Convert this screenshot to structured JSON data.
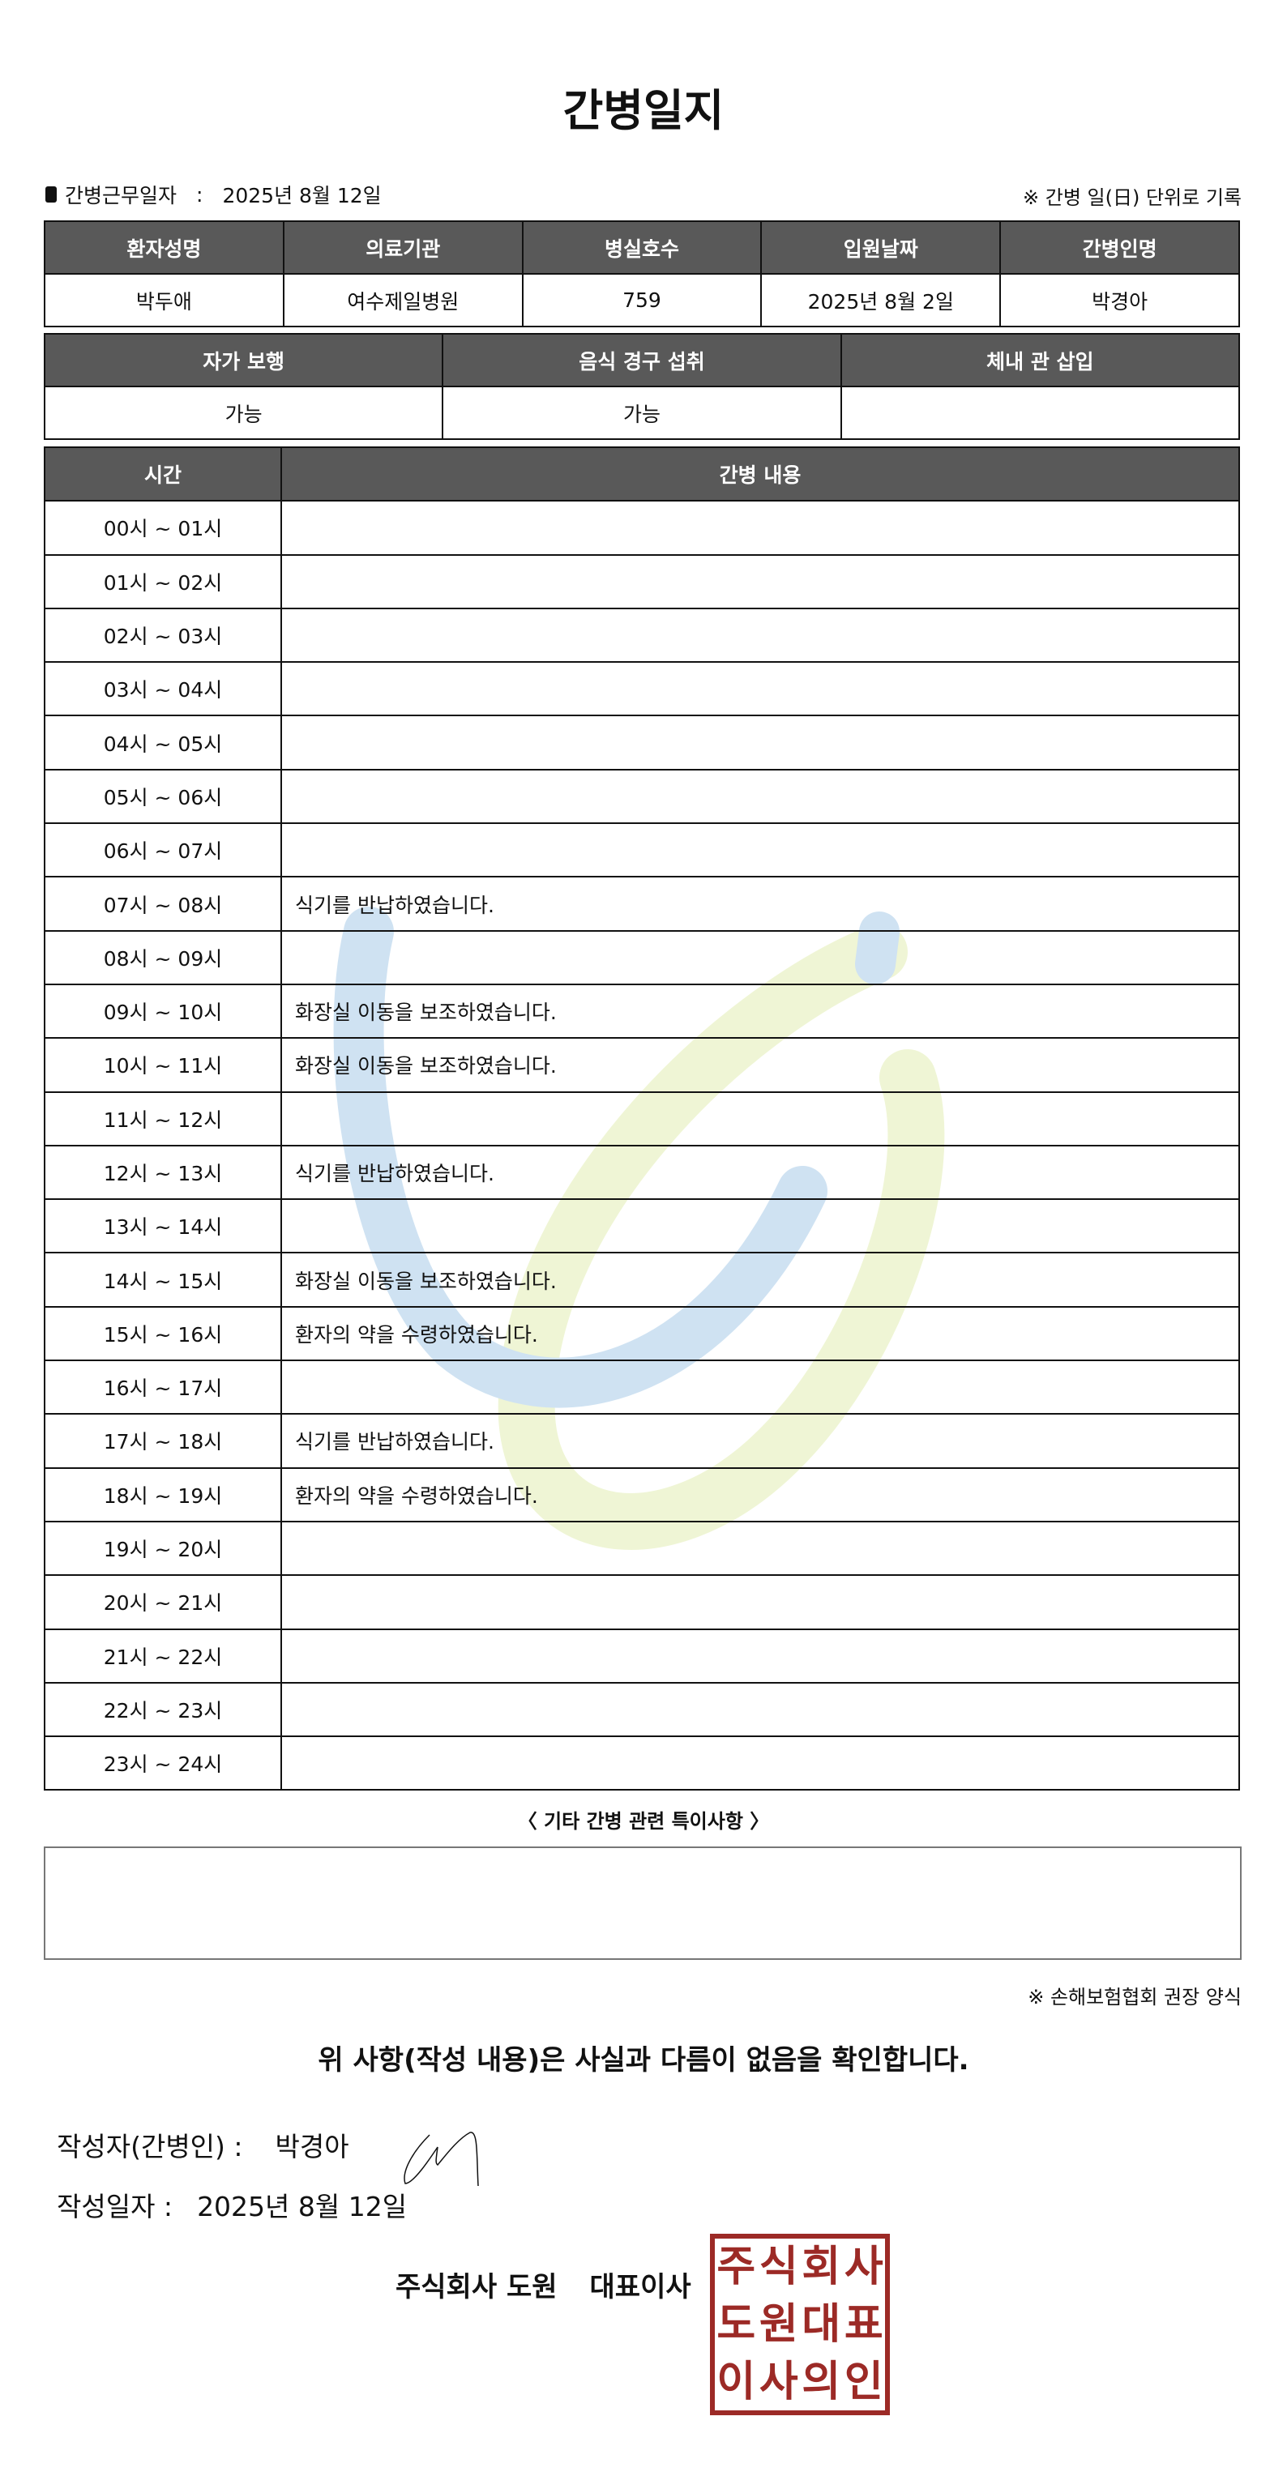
{
  "title": "간병일지",
  "work_date": {
    "label": "간병근무일자",
    "separator": ":",
    "value": "2025년 8월 12일"
  },
  "unit_note": "※ 간병 일(日) 단위로 기록",
  "info_table": {
    "headers": [
      "환자성명",
      "의료기관",
      "병실호수",
      "입원날짜",
      "간병인명"
    ],
    "values": [
      "박두애",
      "여수제일병원",
      "759",
      "2025년 8월 2일",
      "박경아"
    ]
  },
  "status_table": {
    "headers": [
      "자가 보행",
      "음식 경구 섭취",
      "체내 관 삽입"
    ],
    "values": [
      "가능",
      "가능",
      ""
    ]
  },
  "log_table": {
    "headers": [
      "시간",
      "간병 내용"
    ],
    "rows": [
      {
        "time": "00시 ~ 01시",
        "content": ""
      },
      {
        "time": "01시 ~ 02시",
        "content": ""
      },
      {
        "time": "02시 ~ 03시",
        "content": ""
      },
      {
        "time": "03시 ~ 04시",
        "content": ""
      },
      {
        "time": "04시 ~ 05시",
        "content": ""
      },
      {
        "time": "05시 ~ 06시",
        "content": ""
      },
      {
        "time": "06시 ~ 07시",
        "content": ""
      },
      {
        "time": "07시 ~ 08시",
        "content": "식기를 반납하였습니다."
      },
      {
        "time": "08시 ~ 09시",
        "content": ""
      },
      {
        "time": "09시 ~ 10시",
        "content": "화장실 이동을 보조하였습니다."
      },
      {
        "time": "10시 ~ 11시",
        "content": "화장실 이동을 보조하였습니다."
      },
      {
        "time": "11시 ~ 12시",
        "content": ""
      },
      {
        "time": "12시 ~ 13시",
        "content": "식기를 반납하였습니다."
      },
      {
        "time": "13시 ~ 14시",
        "content": ""
      },
      {
        "time": "14시 ~ 15시",
        "content": "화장실 이동을 보조하였습니다."
      },
      {
        "time": "15시 ~ 16시",
        "content": "환자의 약을 수령하였습니다."
      },
      {
        "time": "16시 ~ 17시",
        "content": ""
      },
      {
        "time": "17시 ~ 18시",
        "content": "식기를 반납하였습니다."
      },
      {
        "time": "18시 ~ 19시",
        "content": "환자의 약을 수령하였습니다."
      },
      {
        "time": "19시 ~ 20시",
        "content": ""
      },
      {
        "time": "20시 ~ 21시",
        "content": ""
      },
      {
        "time": "21시 ~ 22시",
        "content": ""
      },
      {
        "time": "22시 ~ 23시",
        "content": ""
      },
      {
        "time": "23시 ~ 24시",
        "content": ""
      }
    ]
  },
  "special_notes": {
    "title": "〈 기타 간병 관련 특이사항 〉",
    "value": ""
  },
  "association_note": "※ 손해보험협회 권장 양식",
  "confirmation": "위 사항(작성 내용)은 사실과 다름이 없음을 확인합니다.",
  "writer": {
    "label": "작성자(간병인) :",
    "name": "박경아"
  },
  "written_date": {
    "label": "작성일자 :",
    "value": "2025년 8월 12일"
  },
  "company": {
    "name": "주식회사 도원",
    "representative": "대표이사"
  },
  "stamp_text": [
    "주",
    "식",
    "회",
    "사",
    "도",
    "원",
    "대",
    "표",
    "이",
    "사",
    "의",
    "인"
  ],
  "colors": {
    "header_bg": "#595959",
    "stamp": "#9c2a26",
    "watermark_blue": "#a9cce8",
    "watermark_yellow": "#e3eeb3"
  }
}
